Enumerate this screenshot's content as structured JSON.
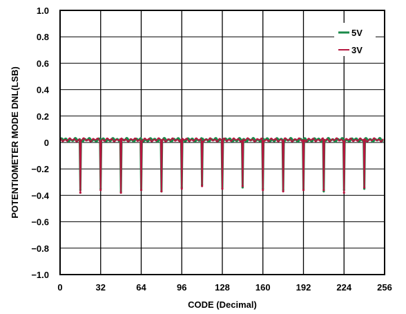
{
  "chart_data": {
    "type": "line",
    "title": "",
    "xlabel": "CODE (Decimal)",
    "ylabel": "POTENTIOMETER MODE DNL(LSB)",
    "xlim": [
      0,
      256
    ],
    "ylim": [
      -1.0,
      1.0
    ],
    "x_ticks": [
      0,
      32,
      64,
      96,
      128,
      160,
      192,
      224,
      256
    ],
    "y_ticks": [
      1.0,
      0.8,
      0.6,
      0.4,
      0.2,
      0,
      -0.2,
      -0.4,
      -0.6,
      -0.8,
      -1.0
    ],
    "x_tick_labels": [
      "0",
      "32",
      "64",
      "96",
      "128",
      "160",
      "192",
      "224",
      "256"
    ],
    "y_tick_labels": [
      "1.0",
      "0.8",
      "0.6",
      "0.4",
      "0.2",
      "0",
      "−0.2",
      "−0.4",
      "−0.6",
      "−0.8",
      "−1.0"
    ],
    "grid": true,
    "legend_position": "top-right",
    "baseline": 0.02,
    "ripple_amplitude": 0.02,
    "series": [
      {
        "name": "5V",
        "color": "#1a8a4a",
        "spikes": [
          {
            "x": 16,
            "y": -0.36
          },
          {
            "x": 32,
            "y": -0.35
          },
          {
            "x": 48,
            "y": -0.37
          },
          {
            "x": 64,
            "y": -0.36
          },
          {
            "x": 80,
            "y": -0.37
          },
          {
            "x": 96,
            "y": -0.34
          },
          {
            "x": 112,
            "y": -0.32
          },
          {
            "x": 128,
            "y": -0.35
          },
          {
            "x": 144,
            "y": -0.34
          },
          {
            "x": 160,
            "y": -0.35
          },
          {
            "x": 176,
            "y": -0.36
          },
          {
            "x": 192,
            "y": -0.35
          },
          {
            "x": 208,
            "y": -0.37
          },
          {
            "x": 224,
            "y": -0.36
          },
          {
            "x": 240,
            "y": -0.35
          }
        ]
      },
      {
        "name": "3V",
        "color": "#b5173f",
        "spikes": [
          {
            "x": 16,
            "y": -0.38
          },
          {
            "x": 32,
            "y": -0.36
          },
          {
            "x": 48,
            "y": -0.38
          },
          {
            "x": 64,
            "y": -0.36
          },
          {
            "x": 80,
            "y": -0.37
          },
          {
            "x": 96,
            "y": -0.35
          },
          {
            "x": 112,
            "y": -0.33
          },
          {
            "x": 128,
            "y": -0.35
          },
          {
            "x": 144,
            "y": -0.33
          },
          {
            "x": 160,
            "y": -0.36
          },
          {
            "x": 176,
            "y": -0.37
          },
          {
            "x": 192,
            "y": -0.36
          },
          {
            "x": 208,
            "y": -0.36
          },
          {
            "x": 224,
            "y": -0.38
          },
          {
            "x": 240,
            "y": -0.34
          }
        ]
      }
    ]
  }
}
